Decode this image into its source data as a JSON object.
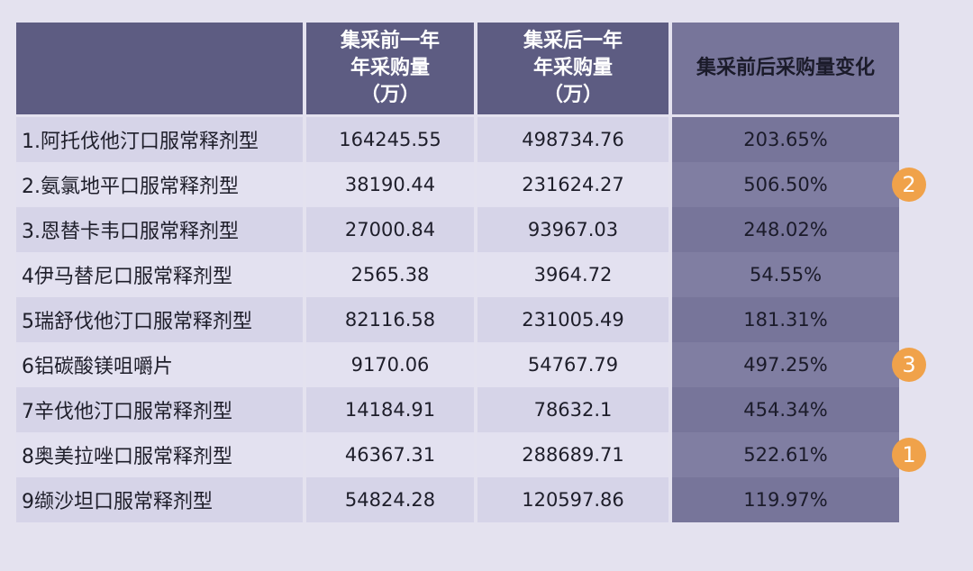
{
  "table": {
    "headers": [
      "",
      "集采前一年\n年采购量\n（万）",
      "集采后一年\n年采购量\n（万）",
      "集采前后采购量变化"
    ],
    "rows": [
      [
        "1.阿托伐他汀口服常释剂型",
        "164245.55",
        "498734.76",
        "203.65%"
      ],
      [
        "2.氨氯地平口服常释剂型",
        "38190.44",
        "231624.27",
        "506.50%"
      ],
      [
        "3.恩替卡韦口服常释剂型",
        "27000.84",
        "93967.03",
        "248.02%"
      ],
      [
        "4伊马替尼口服常释剂型",
        "2565.38",
        "3964.72",
        "54.55%"
      ],
      [
        "5瑞舒伐他汀口服常释剂型",
        "82116.58",
        "231005.49",
        "181.31%"
      ],
      [
        "6铝碳酸镁咀嚼片",
        "9170.06",
        "54767.79",
        "497.25%"
      ],
      [
        "7辛伐他汀口服常释剂型",
        "14184.91",
        "78632.1",
        "454.34%"
      ],
      [
        "8奥美拉唑口服常释剂型",
        "46367.31",
        "288689.71",
        "522.61%"
      ],
      [
        "9缬沙坦口服常释剂型",
        "54824.28",
        "120597.86",
        "119.97%"
      ]
    ]
  },
  "badges": [
    {
      "label": "2",
      "row": 1
    },
    {
      "label": "3",
      "row": 5
    },
    {
      "label": "1",
      "row": 7
    }
  ],
  "colors": {
    "header": "#5d5c82",
    "change_column": "#77759a",
    "badge": "#f0a24a"
  }
}
